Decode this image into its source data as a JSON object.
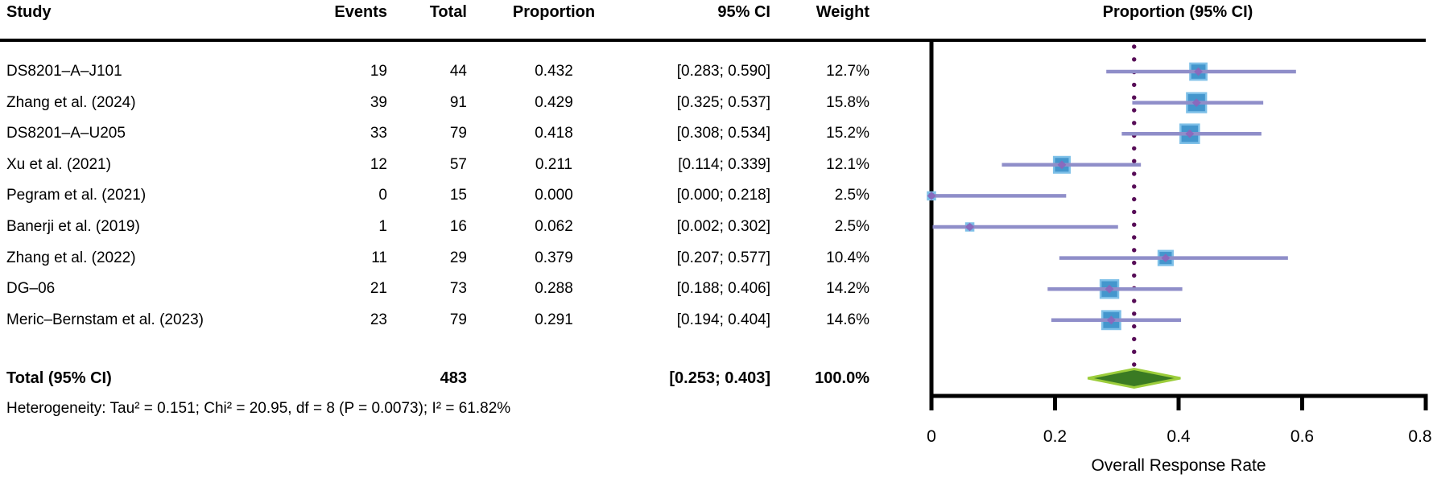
{
  "table": {
    "headers": {
      "study": "Study",
      "events": "Events",
      "total": "Total",
      "proportion": "Proportion",
      "ci": "95% CI",
      "weight": "Weight"
    },
    "heterogeneity": "Heterogeneity: Tau² = 0.151; Chi² = 20.95, df = 8 (P = 0.0073); I² = 61.82%"
  },
  "plot": {
    "header": "Proportion (95% CI)",
    "xlabel": "Overall Response Rate",
    "tick_labels": [
      "0",
      "0.2",
      "0.4",
      "0.6",
      "0.8"
    ],
    "colors": {
      "ci_line": "#8f8ec9",
      "marker_fill": "#4496cd",
      "marker_border": "#7ec0e8",
      "marker_center": "#8b66bb",
      "reference_dots": "#570d57",
      "diamond_fill": "#3a7a23",
      "diamond_border": "#9ccd3b",
      "axis": "#000000"
    }
  },
  "chart_data": {
    "type": "forest",
    "title": "Proportion (95% CI)",
    "xlabel": "Overall Response Rate",
    "xlim": [
      0,
      0.8
    ],
    "xticks": [
      0,
      0.2,
      0.4,
      0.6,
      0.8
    ],
    "reference_line": 0.328,
    "studies": [
      {
        "name": "DS8201–A–J101",
        "events": 19,
        "total": 44,
        "proportion": 0.432,
        "ci": [
          0.283,
          0.59
        ],
        "weight_pct": 12.7
      },
      {
        "name": "Zhang et al. (2024)",
        "events": 39,
        "total": 91,
        "proportion": 0.429,
        "ci": [
          0.325,
          0.537
        ],
        "weight_pct": 15.8
      },
      {
        "name": "DS8201–A–U205",
        "events": 33,
        "total": 79,
        "proportion": 0.418,
        "ci": [
          0.308,
          0.534
        ],
        "weight_pct": 15.2
      },
      {
        "name": "Xu et al. (2021)",
        "events": 12,
        "total": 57,
        "proportion": 0.211,
        "ci": [
          0.114,
          0.339
        ],
        "weight_pct": 12.1
      },
      {
        "name": "Pegram et al. (2021)",
        "events": 0,
        "total": 15,
        "proportion": 0.0,
        "ci": [
          0.0,
          0.218
        ],
        "weight_pct": 2.5
      },
      {
        "name": "Banerji et al. (2019)",
        "events": 1,
        "total": 16,
        "proportion": 0.062,
        "ci": [
          0.002,
          0.302
        ],
        "weight_pct": 2.5
      },
      {
        "name": "Zhang et al. (2022)",
        "events": 11,
        "total": 29,
        "proportion": 0.379,
        "ci": [
          0.207,
          0.577
        ],
        "weight_pct": 10.4
      },
      {
        "name": "DG–06",
        "events": 21,
        "total": 73,
        "proportion": 0.288,
        "ci": [
          0.188,
          0.406
        ],
        "weight_pct": 14.2
      },
      {
        "name": "Meric–Bernstam et al. (2023)",
        "events": 23,
        "total": 79,
        "proportion": 0.291,
        "ci": [
          0.194,
          0.404
        ],
        "weight_pct": 14.6
      }
    ],
    "pooled": {
      "label": "Total (95% CI)",
      "total": 483,
      "proportion": 0.328,
      "ci": [
        0.253,
        0.403
      ],
      "weight_pct": 100.0
    },
    "heterogeneity": {
      "tau2": 0.151,
      "chi2": 20.95,
      "df": 8,
      "p": 0.0073,
      "i2_pct": 61.82
    }
  }
}
